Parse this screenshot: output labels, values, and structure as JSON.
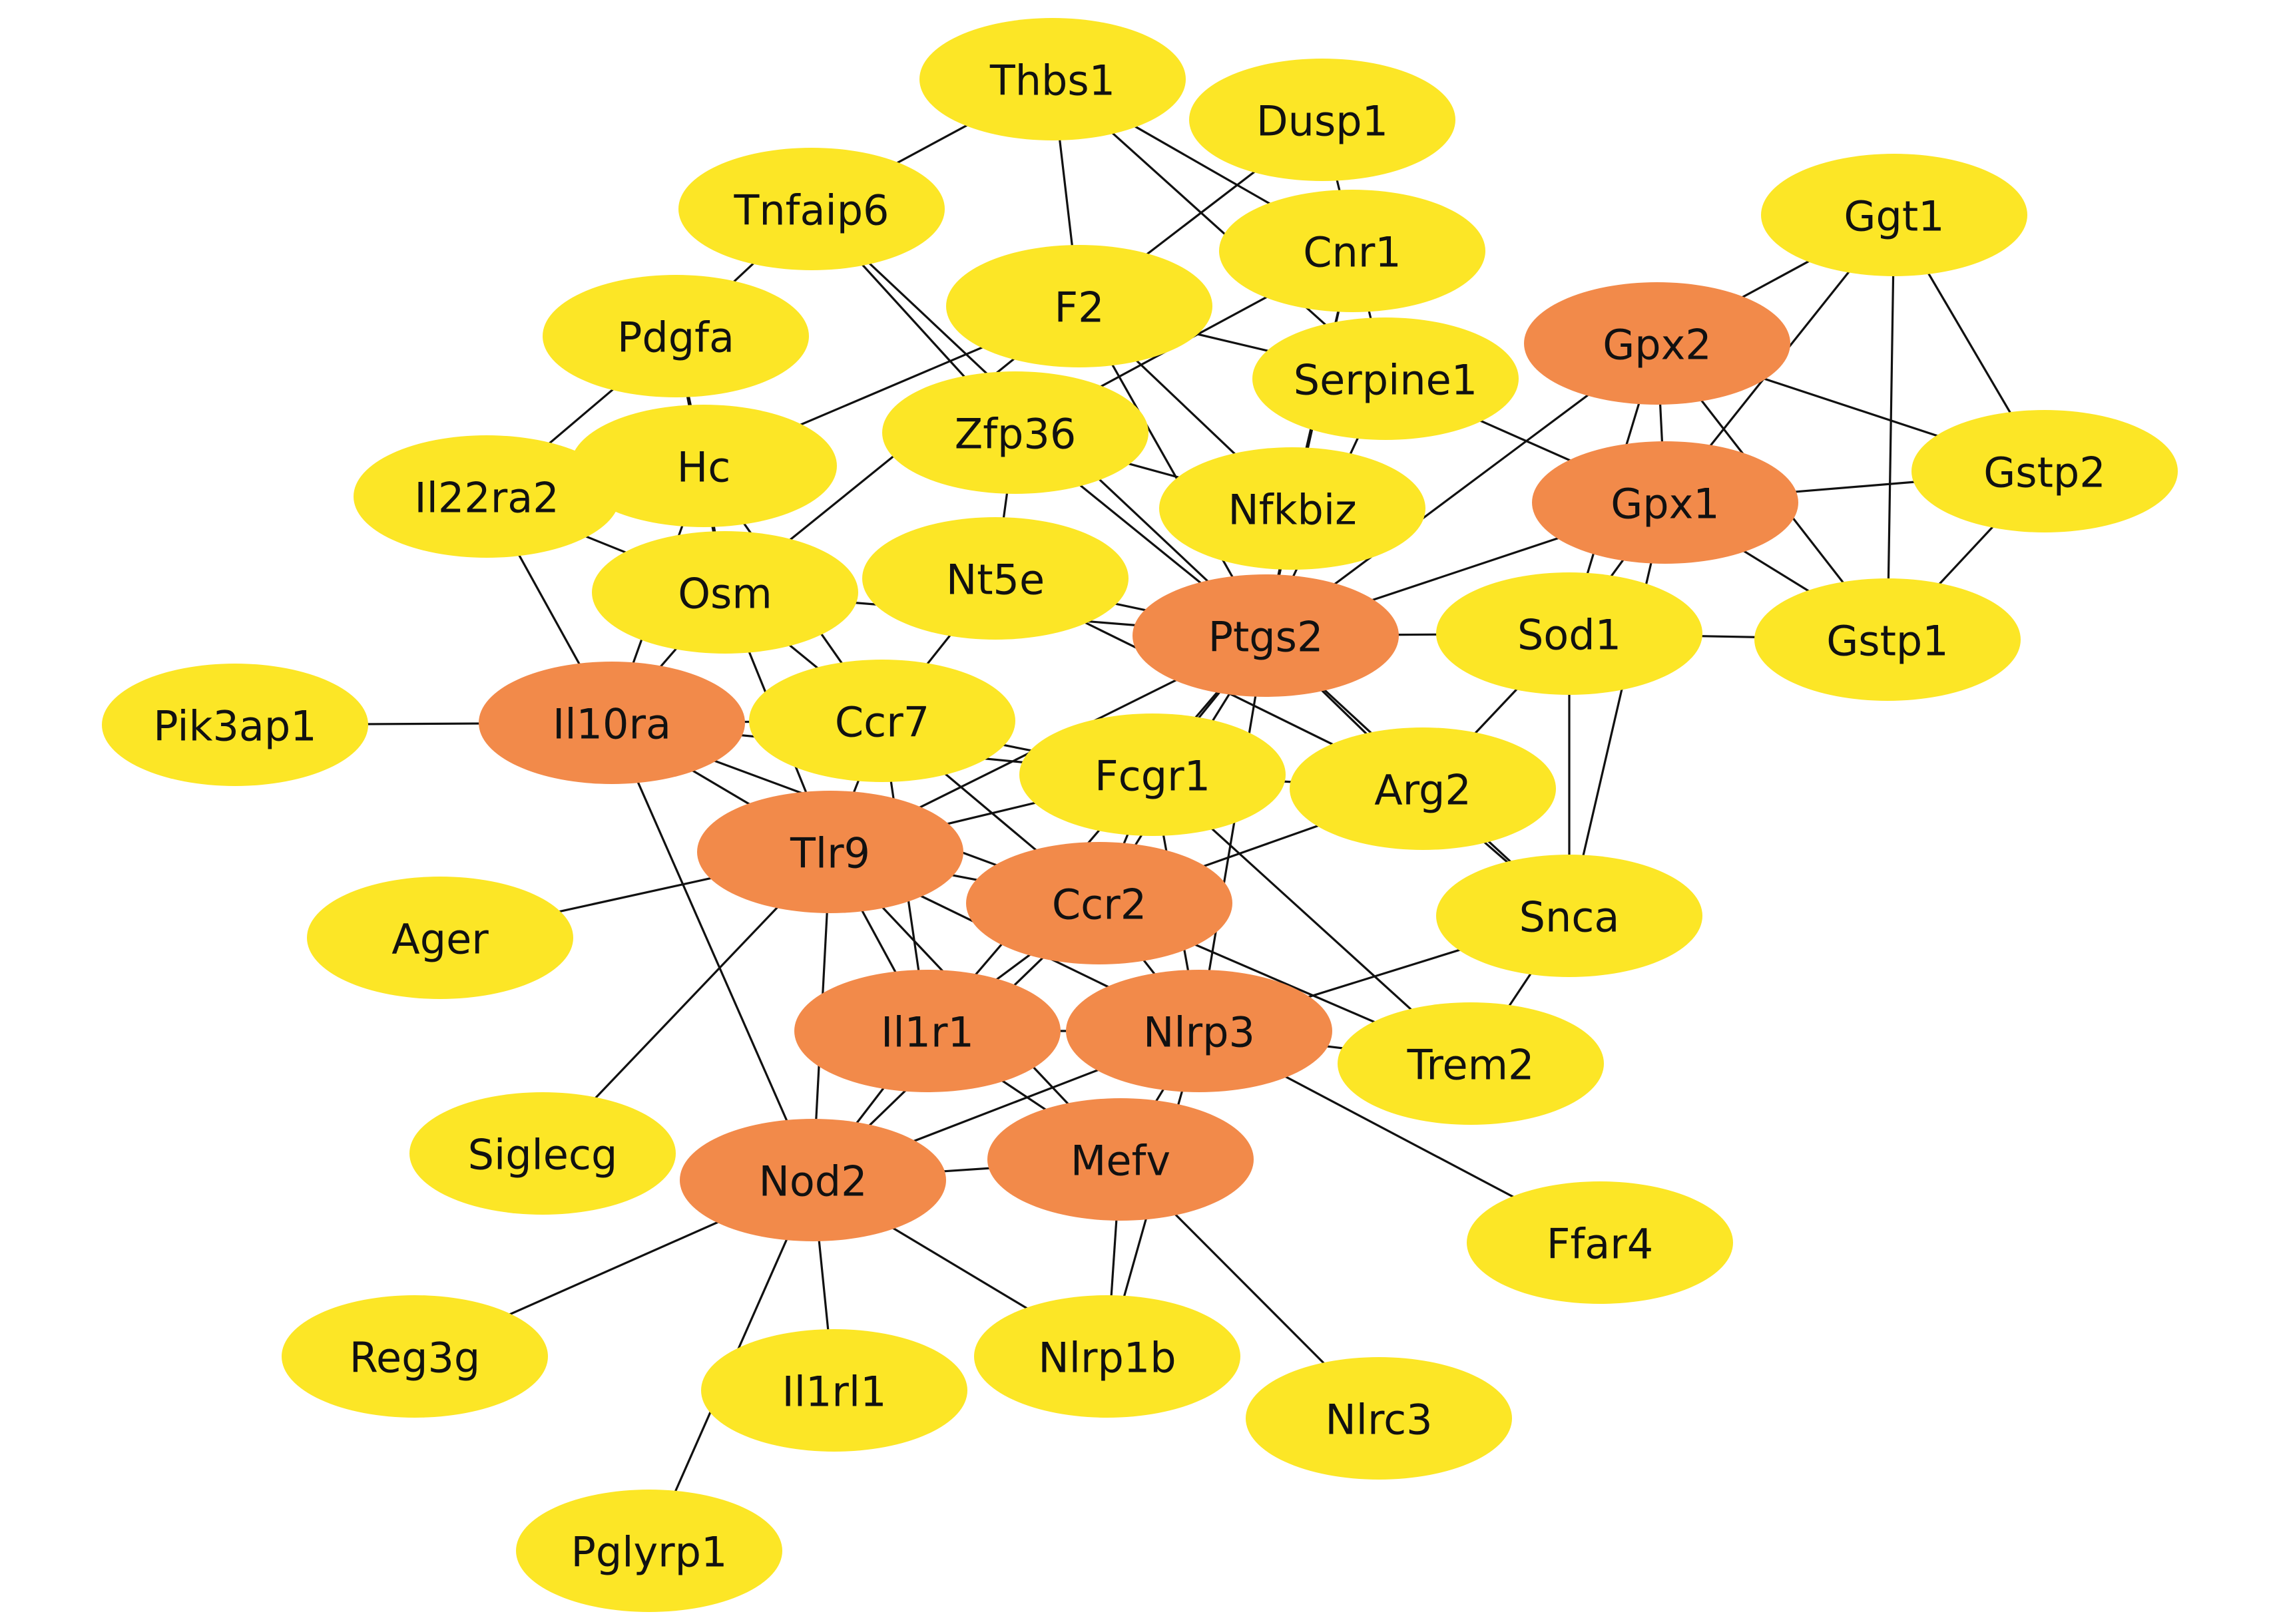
{
  "colors": {
    "hub": "#f28a4a",
    "regular": "#fce626",
    "edge": "#111111",
    "background": "#ffffff"
  },
  "nodes": [
    {
      "id": "Thbs1",
      "hub": false
    },
    {
      "id": "Dusp1",
      "hub": false
    },
    {
      "id": "Tnfaip6",
      "hub": false
    },
    {
      "id": "Cnr1",
      "hub": false
    },
    {
      "id": "Ggt1",
      "hub": false
    },
    {
      "id": "F2",
      "hub": false
    },
    {
      "id": "Pdgfa",
      "hub": false
    },
    {
      "id": "Gpx2",
      "hub": true
    },
    {
      "id": "Serpine1",
      "hub": false
    },
    {
      "id": "Zfp36",
      "hub": false
    },
    {
      "id": "Hc",
      "hub": false
    },
    {
      "id": "Il22ra2",
      "hub": false
    },
    {
      "id": "Gstp2",
      "hub": false
    },
    {
      "id": "Gpx1",
      "hub": true
    },
    {
      "id": "Nfkbiz",
      "hub": false
    },
    {
      "id": "Osm",
      "hub": false
    },
    {
      "id": "Nt5e",
      "hub": false
    },
    {
      "id": "Ptgs2",
      "hub": true
    },
    {
      "id": "Sod1",
      "hub": false
    },
    {
      "id": "Gstp1",
      "hub": false
    },
    {
      "id": "Pik3ap1",
      "hub": false
    },
    {
      "id": "Il10ra",
      "hub": true
    },
    {
      "id": "Ccr7",
      "hub": false
    },
    {
      "id": "Fcgr1",
      "hub": false
    },
    {
      "id": "Arg2",
      "hub": false
    },
    {
      "id": "Tlr9",
      "hub": true
    },
    {
      "id": "Ager",
      "hub": false
    },
    {
      "id": "Ccr2",
      "hub": true
    },
    {
      "id": "Snca",
      "hub": false
    },
    {
      "id": "Il1r1",
      "hub": true
    },
    {
      "id": "Nlrp3",
      "hub": true
    },
    {
      "id": "Trem2",
      "hub": false
    },
    {
      "id": "Siglecg",
      "hub": false
    },
    {
      "id": "Nod2",
      "hub": true
    },
    {
      "id": "Mefv",
      "hub": true
    },
    {
      "id": "Ffar4",
      "hub": false
    },
    {
      "id": "Reg3g",
      "hub": false
    },
    {
      "id": "Il1rl1",
      "hub": false
    },
    {
      "id": "Nlrp1b",
      "hub": false
    },
    {
      "id": "Nlrc3",
      "hub": false
    },
    {
      "id": "Pglyrp1",
      "hub": false
    }
  ],
  "edges": [
    [
      "Thbs1",
      "Tnfaip6"
    ],
    [
      "Thbs1",
      "F2"
    ],
    [
      "Thbs1",
      "Cnr1"
    ],
    [
      "Thbs1",
      "Serpine1"
    ],
    [
      "Dusp1",
      "F2"
    ],
    [
      "Dusp1",
      "Serpine1"
    ],
    [
      "Tnfaip6",
      "Pdgfa"
    ],
    [
      "Tnfaip6",
      "Zfp36"
    ],
    [
      "Tnfaip6",
      "Ptgs2"
    ],
    [
      "Cnr1",
      "Nfkbiz"
    ],
    [
      "Cnr1",
      "Ptgs2"
    ],
    [
      "Cnr1",
      "Zfp36"
    ],
    [
      "Ggt1",
      "Gpx2"
    ],
    [
      "Ggt1",
      "Gpx1"
    ],
    [
      "Ggt1",
      "Gstp2"
    ],
    [
      "Ggt1",
      "Gstp1"
    ],
    [
      "F2",
      "Serpine1"
    ],
    [
      "F2",
      "Hc"
    ],
    [
      "F2",
      "Nfkbiz"
    ],
    [
      "F2",
      "Ptgs2"
    ],
    [
      "F2",
      "Osm"
    ],
    [
      "Pdgfa",
      "Il22ra2"
    ],
    [
      "Pdgfa",
      "Hc"
    ],
    [
      "Pdgfa",
      "Osm"
    ],
    [
      "Gpx2",
      "Gpx1"
    ],
    [
      "Gpx2",
      "Gstp2"
    ],
    [
      "Gpx2",
      "Gstp1"
    ],
    [
      "Gpx2",
      "Sod1"
    ],
    [
      "Gpx2",
      "Ptgs2"
    ],
    [
      "Serpine1",
      "Gpx1"
    ],
    [
      "Serpine1",
      "Ptgs2"
    ],
    [
      "Zfp36",
      "Nfkbiz"
    ],
    [
      "Zfp36",
      "Ptgs2"
    ],
    [
      "Zfp36",
      "Nt5e"
    ],
    [
      "Hc",
      "Osm"
    ],
    [
      "Hc",
      "Il10ra"
    ],
    [
      "Hc",
      "Ccr7"
    ],
    [
      "Il22ra2",
      "Osm"
    ],
    [
      "Il22ra2",
      "Il10ra"
    ],
    [
      "Gstp2",
      "Gpx1"
    ],
    [
      "Gstp2",
      "Gstp1"
    ],
    [
      "Gpx1",
      "Gstp1"
    ],
    [
      "Gpx1",
      "Sod1"
    ],
    [
      "Gpx1",
      "Ptgs2"
    ],
    [
      "Gpx1",
      "Snca"
    ],
    [
      "Nfkbiz",
      "Ptgs2"
    ],
    [
      "Osm",
      "Ccr7"
    ],
    [
      "Osm",
      "Ptgs2"
    ],
    [
      "Osm",
      "Il10ra"
    ],
    [
      "Osm",
      "Tlr9"
    ],
    [
      "Nt5e",
      "Ptgs2"
    ],
    [
      "Nt5e",
      "Ccr7"
    ],
    [
      "Nt5e",
      "Arg2"
    ],
    [
      "Ptgs2",
      "Sod1"
    ],
    [
      "Ptgs2",
      "Arg2"
    ],
    [
      "Ptgs2",
      "Fcgr1"
    ],
    [
      "Ptgs2",
      "Ccr2"
    ],
    [
      "Ptgs2",
      "Tlr9"
    ],
    [
      "Ptgs2",
      "Nlrp3"
    ],
    [
      "Ptgs2",
      "Il1r1"
    ],
    [
      "Ptgs2",
      "Snca"
    ],
    [
      "Sod1",
      "Gstp1"
    ],
    [
      "Sod1",
      "Snca"
    ],
    [
      "Sod1",
      "Arg2"
    ],
    [
      "Pik3ap1",
      "Il10ra"
    ],
    [
      "Il10ra",
      "Ccr7"
    ],
    [
      "Il10ra",
      "Tlr9"
    ],
    [
      "Il10ra",
      "Ccr2"
    ],
    [
      "Il10ra",
      "Nod2"
    ],
    [
      "Il10ra",
      "Fcgr1"
    ],
    [
      "Ccr7",
      "Tlr9"
    ],
    [
      "Ccr7",
      "Ccr2"
    ],
    [
      "Ccr7",
      "Fcgr1"
    ],
    [
      "Ccr7",
      "Il1r1"
    ],
    [
      "Fcgr1",
      "Tlr9"
    ],
    [
      "Fcgr1",
      "Ccr2"
    ],
    [
      "Fcgr1",
      "Arg2"
    ],
    [
      "Fcgr1",
      "Trem2"
    ],
    [
      "Fcgr1",
      "Nlrp3"
    ],
    [
      "Arg2",
      "Ccr2"
    ],
    [
      "Arg2",
      "Snca"
    ],
    [
      "Tlr9",
      "Ager"
    ],
    [
      "Tlr9",
      "Ccr2"
    ],
    [
      "Tlr9",
      "Il1r1"
    ],
    [
      "Tlr9",
      "Nlrp3"
    ],
    [
      "Tlr9",
      "Nod2"
    ],
    [
      "Tlr9",
      "Mefv"
    ],
    [
      "Tlr9",
      "Siglecg"
    ],
    [
      "Ccr2",
      "Il1r1"
    ],
    [
      "Ccr2",
      "Nlrp3"
    ],
    [
      "Ccr2",
      "Trem2"
    ],
    [
      "Ccr2",
      "Nod2"
    ],
    [
      "Snca",
      "Nlrp3"
    ],
    [
      "Snca",
      "Trem2"
    ],
    [
      "Il1r1",
      "Nod2"
    ],
    [
      "Il1r1",
      "Mefv"
    ],
    [
      "Il1r1",
      "Nlrp3"
    ],
    [
      "Nlrp3",
      "Trem2"
    ],
    [
      "Nlrp3",
      "Ffar4"
    ],
    [
      "Nlrp3",
      "Mefv"
    ],
    [
      "Nlrp3",
      "Nod2"
    ],
    [
      "Nlrp3",
      "Nlrp1b"
    ],
    [
      "Nod2",
      "Mefv"
    ],
    [
      "Nod2",
      "Reg3g"
    ],
    [
      "Nod2",
      "Il1rl1"
    ],
    [
      "Nod2",
      "Pglyrp1"
    ],
    [
      "Nod2",
      "Nlrp1b"
    ],
    [
      "Mefv",
      "Nlrp1b"
    ],
    [
      "Mefv",
      "Nlrc3"
    ]
  ]
}
